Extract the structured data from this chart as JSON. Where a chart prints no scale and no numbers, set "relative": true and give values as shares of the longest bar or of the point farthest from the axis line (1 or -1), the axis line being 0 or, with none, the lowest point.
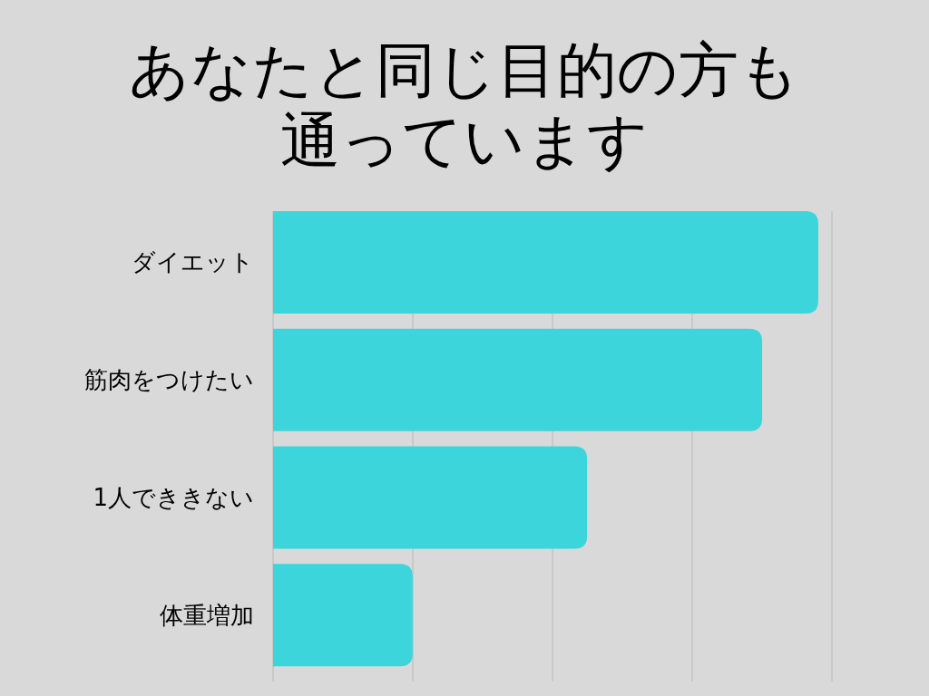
{
  "chart_data": {
    "type": "bar",
    "orientation": "horizontal",
    "relative": true,
    "title": "あなたと同じ目的の方も通っています",
    "categories": [
      "ダイエット",
      "筋肉をつけたい",
      "1人でききない",
      "体重増加"
    ],
    "values": [
      1,
      0.897,
      0.576,
      0.256
    ],
    "color": "#3dd5dc",
    "grid": "x"
  }
}
